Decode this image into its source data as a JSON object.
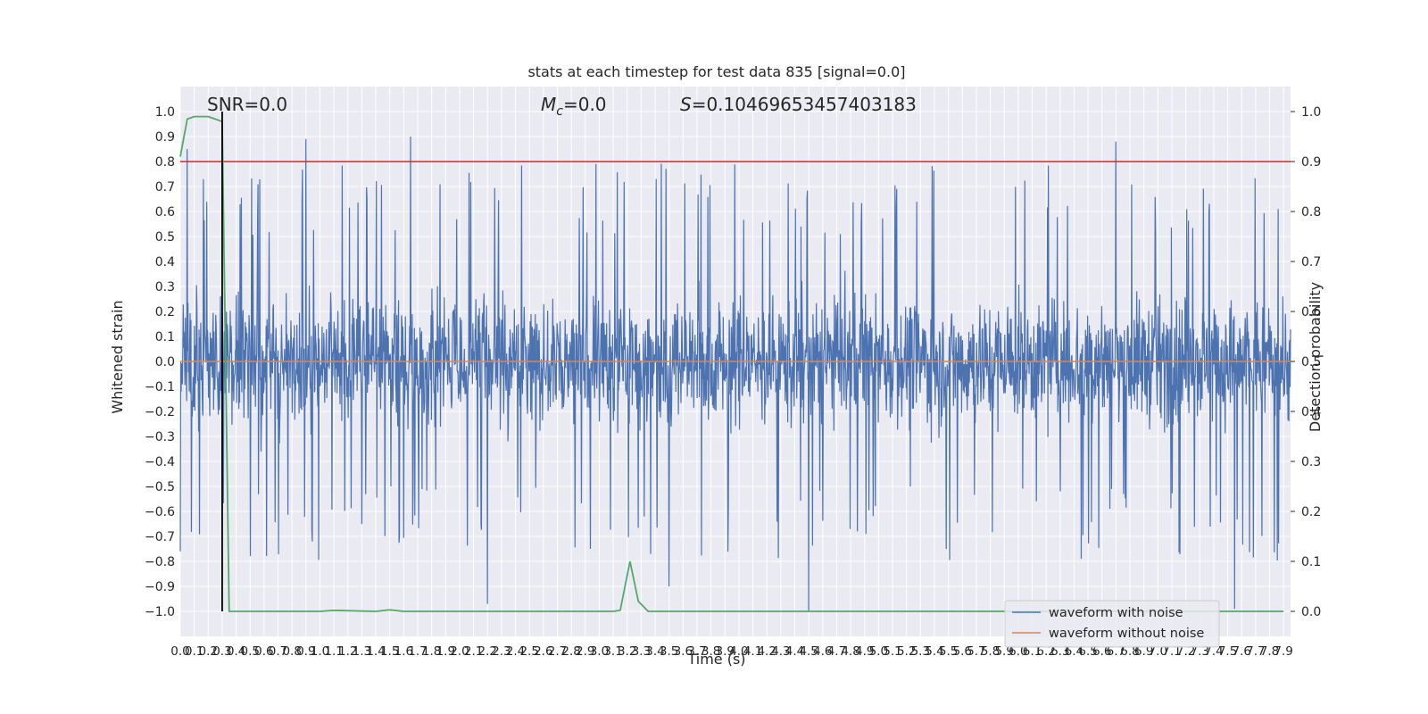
{
  "chart_data": {
    "type": "line",
    "title": "stats at each timestep for test data 835 [signal=0.0]",
    "xlabel": "Time (s)",
    "ylabel": "Whitened strain",
    "y2label": "Detection probability",
    "xlim": [
      0.0,
      7.95
    ],
    "ylim": [
      -1.1,
      1.1
    ],
    "y2lim": [
      -0.05,
      1.05
    ],
    "x_ticks": [
      0.0,
      0.1,
      0.2,
      0.3,
      0.4,
      0.5,
      0.6,
      0.7,
      0.8,
      0.9,
      1.0,
      1.1,
      1.2,
      1.3,
      1.4,
      1.5,
      1.6,
      1.7,
      1.8,
      1.9,
      2.0,
      2.1,
      2.2,
      2.3,
      2.4,
      2.5,
      2.6,
      2.7,
      2.8,
      2.9,
      3.0,
      3.1,
      3.2,
      3.3,
      3.4,
      3.5,
      3.6,
      3.7,
      3.8,
      3.9,
      4.0,
      4.1,
      4.2,
      4.3,
      4.4,
      4.5,
      4.6,
      4.7,
      4.8,
      4.9,
      5.0,
      5.1,
      5.2,
      5.3,
      5.4,
      5.5,
      5.6,
      5.7,
      5.8,
      5.9,
      6.0,
      6.1,
      6.2,
      6.3,
      6.4,
      6.5,
      6.6,
      6.7,
      6.8,
      6.9,
      7.0,
      7.1,
      7.2,
      7.3,
      7.4,
      7.5,
      7.6,
      7.7,
      7.8,
      7.9
    ],
    "x_tick_labels": [
      "0.0",
      "0.1",
      "0.2",
      "0.3",
      "0.4",
      "0.5",
      "0.6",
      "0.7",
      "0.8",
      "0.9",
      "1.0",
      "1.1",
      "1.2",
      "1.3",
      "1.4",
      "1.5",
      "1.6",
      "1.7",
      "1.8",
      "1.9",
      "2.0",
      "2.1",
      "2.2",
      "2.3",
      "2.4",
      "2.5",
      "2.6",
      "2.7",
      "2.8",
      "2.9",
      "3.0",
      "3.1",
      "3.2",
      "3.3",
      "3.4",
      "3.5",
      "3.6",
      "3.7",
      "3.8",
      "3.9",
      "4.0",
      "4.1",
      "4.2",
      "4.3",
      "4.4",
      "4.5",
      "4.6",
      "4.7",
      "4.8",
      "4.9",
      "5.0",
      "5.1",
      "5.2",
      "5.3",
      "5.4",
      "5.5",
      "5.6",
      "5.7",
      "5.8",
      "5.9",
      "6.0",
      "6.1",
      "6.2",
      "6.3",
      "6.4",
      "6.5",
      "6.6",
      "6.7",
      "6.8",
      "6.9",
      "7.0",
      "7.1",
      "7.2",
      "7.3",
      "7.4",
      "7.5",
      "7.6",
      "7.7",
      "7.8",
      "7.9"
    ],
    "y_ticks": [
      -1.0,
      -0.9,
      -0.8,
      -0.7,
      -0.6,
      -0.5,
      -0.4,
      -0.3,
      -0.2,
      -0.1,
      0.0,
      0.1,
      0.2,
      0.3,
      0.4,
      0.5,
      0.6,
      0.7,
      0.8,
      0.9,
      1.0
    ],
    "y_tick_labels": [
      "−1.0",
      "−0.9",
      "−0.8",
      "−0.7",
      "−0.6",
      "−0.5",
      "−0.4",
      "−0.3",
      "−0.2",
      "−0.1",
      "0.0",
      "0.1",
      "0.2",
      "0.3",
      "0.4",
      "0.5",
      "0.6",
      "0.7",
      "0.8",
      "0.9",
      "1.0"
    ],
    "y2_ticks": [
      0.0,
      0.1,
      0.2,
      0.3,
      0.4,
      0.5,
      0.6,
      0.7,
      0.8,
      0.9,
      1.0
    ],
    "y2_tick_labels": [
      "0.0",
      "0.1",
      "0.2",
      "0.3",
      "0.4",
      "0.5",
      "0.6",
      "0.7",
      "0.8",
      "0.9",
      "1.0"
    ],
    "grid": true,
    "legend_position": "lower-right",
    "annotations": {
      "snr": "SNR=0.0",
      "mc_symbol": "M",
      "mc_sub": "c",
      "mc_value": "=0.0",
      "s_symbol": "S",
      "s_value": "=0.10469653457403183"
    },
    "series": [
      {
        "name": "waveform with noise",
        "axis": "left",
        "color": "#4c72b0",
        "description_values": {
          "mean": 0.0,
          "typical_max": 0.5,
          "typical_min": -0.5,
          "peaks": [
            [
              0.05,
              0.85
            ],
            [
              1.65,
              0.9
            ],
            [
              4.5,
              1.0
            ],
            [
              0.9,
              0.89
            ],
            [
              6.7,
              0.88
            ],
            [
              0.0,
              -0.76
            ],
            [
              2.2,
              -0.97
            ],
            [
              4.5,
              -1.0
            ],
            [
              7.55,
              -0.99
            ],
            [
              3.5,
              -0.9
            ]
          ]
        }
      },
      {
        "name": "waveform without noise",
        "axis": "left",
        "color": "#dd8452",
        "x": [
          0.0,
          7.95
        ],
        "y": [
          0.0,
          0.0
        ]
      },
      {
        "axis": "right",
        "color": "#55a868",
        "x": [
          0.0,
          0.05,
          0.1,
          0.15,
          0.2,
          0.25,
          0.3,
          0.35,
          0.4,
          1.0,
          1.1,
          1.4,
          1.5,
          1.6,
          3.1,
          3.15,
          3.22,
          3.28,
          3.35,
          3.4,
          7.9
        ],
        "y": [
          0.91,
          0.985,
          0.99,
          0.99,
          0.99,
          0.985,
          0.98,
          0.0,
          0.0,
          0.0,
          0.002,
          0.0,
          0.003,
          0.0,
          0.0,
          0.002,
          0.1,
          0.02,
          0.0,
          0.0,
          0.0
        ]
      },
      {
        "axis": "left",
        "color": "#d62728",
        "type": "threshold",
        "y2_value": 0.9
      },
      {
        "axis": "left",
        "color": "#000000",
        "type": "vertical-line",
        "x": [
          0.3,
          0.3
        ],
        "y2": [
          0.0,
          1.0
        ]
      }
    ]
  }
}
